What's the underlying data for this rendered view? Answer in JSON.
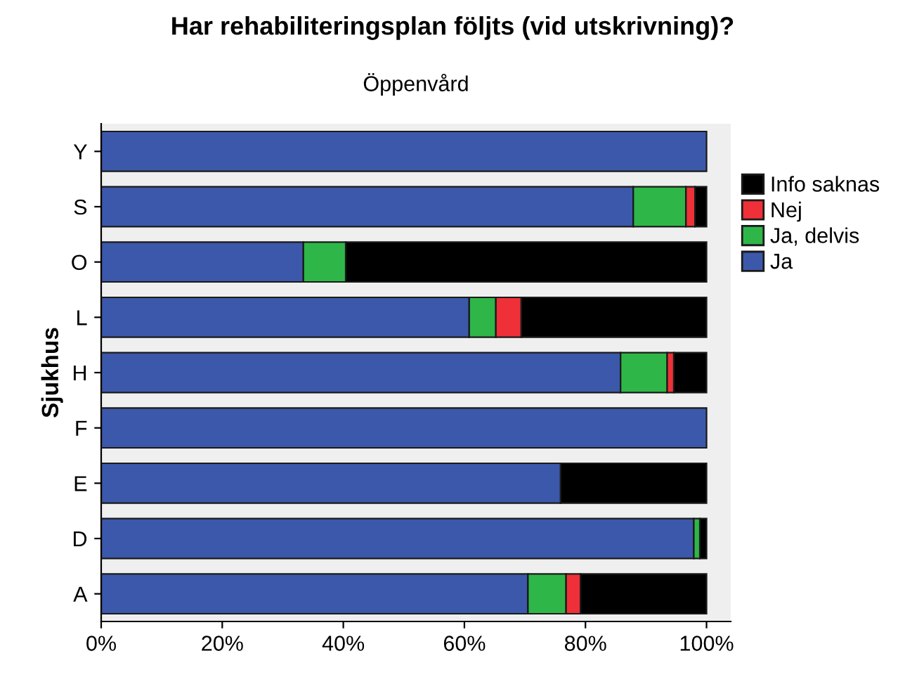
{
  "chart_data": {
    "type": "bar",
    "orientation": "horizontal",
    "stacked": true,
    "title": "Har rehabiliteringsplan följts (vid utskrivning)?",
    "subtitle": "Öppenvård",
    "ylabel": "Sjukhus",
    "categories": [
      "Y",
      "S",
      "O",
      "L",
      "H",
      "F",
      "E",
      "D",
      "A"
    ],
    "series": [
      {
        "name": "Ja",
        "color": "#3c58aa",
        "values": [
          100,
          87.9,
          33.4,
          60.8,
          85.8,
          100,
          75.9,
          97.9,
          70.5
        ]
      },
      {
        "name": "Ja, delvis",
        "color": "#2eb748",
        "values": [
          0,
          8.7,
          7.0,
          4.4,
          7.7,
          0,
          0,
          1.0,
          6.3
        ]
      },
      {
        "name": "Nej",
        "color": "#ef3038",
        "values": [
          0,
          1.5,
          0,
          4.2,
          1.1,
          0,
          0,
          0,
          2.4
        ]
      },
      {
        "name": "Info saknas",
        "color": "#000000",
        "values": [
          0,
          1.9,
          59.6,
          30.6,
          5.4,
          0,
          24.1,
          1.1,
          20.8
        ]
      }
    ],
    "xlim": [
      0,
      104
    ],
    "xticks": [
      {
        "value": 0,
        "label": "0%"
      },
      {
        "value": 20,
        "label": "20%"
      },
      {
        "value": 40,
        "label": "40%"
      },
      {
        "value": 60,
        "label": "60%"
      },
      {
        "value": 80,
        "label": "80%"
      },
      {
        "value": 100,
        "label": "100%"
      }
    ],
    "grid": false,
    "legend": "top right"
  }
}
